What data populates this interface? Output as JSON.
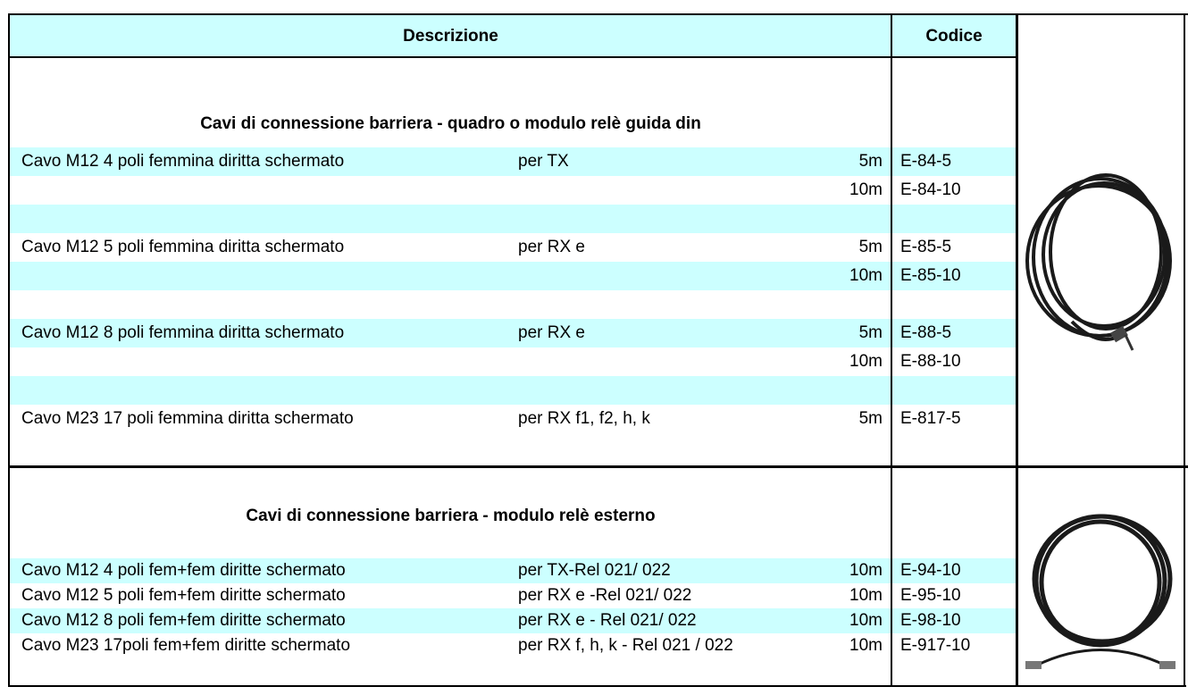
{
  "header": {
    "description": "Descrizione",
    "code": "Codice"
  },
  "sections": [
    {
      "title": "Cavi di connessione  barriera - quadro o modulo relè guida din",
      "rows": [
        {
          "description": "Cavo M12 4 poli femmina diritta schermato",
          "use": "per  TX",
          "length": "5m",
          "code": "E-84-5"
        },
        {
          "length": "10m",
          "code": "E-84-10"
        },
        {
          "description": "Cavo M12 5 poli femmina diritta schermato",
          "use": "per  RX e",
          "length": "5m",
          "code": "E-85-5"
        },
        {
          "length": "10m",
          "code": "E-85-10"
        },
        {
          "description": "Cavo M12 8 poli femmina diritta schermato",
          "use": "per  RX e",
          "length": "5m",
          "code": "E-88-5"
        },
        {
          "length": "10m",
          "code": "E-88-10"
        },
        {
          "description": "Cavo M23 17 poli femmina diritta schermato",
          "use": "per  RX f1, f2, h, k",
          "length": "5m",
          "code": "E-817-5"
        }
      ]
    },
    {
      "title": "Cavi di connessione   barriera - modulo relè esterno",
      "rows": [
        {
          "description": "Cavo M12  4 poli fem+fem diritte schermato",
          "use": "per TX-Rel 021/ 022",
          "length": "10m",
          "code": "E-94-10"
        },
        {
          "description": "Cavo M12  5 poli fem+fem diritte schermato",
          "use": "per RX e -Rel 021/ 022",
          "length": "10m",
          "code": "E-95-10"
        },
        {
          "description": "Cavo M12  8 poli fem+fem diritte schermato",
          "use": "per RX e - Rel 021/ 022",
          "length": "10m",
          "code": "E-98-10"
        },
        {
          "description": "Cavo M23 17poli fem+fem diritte schermato",
          "use": "per RX f, h, k - Rel 021 / 022",
          "length": "10m",
          "code": "E-917-10"
        }
      ]
    }
  ]
}
